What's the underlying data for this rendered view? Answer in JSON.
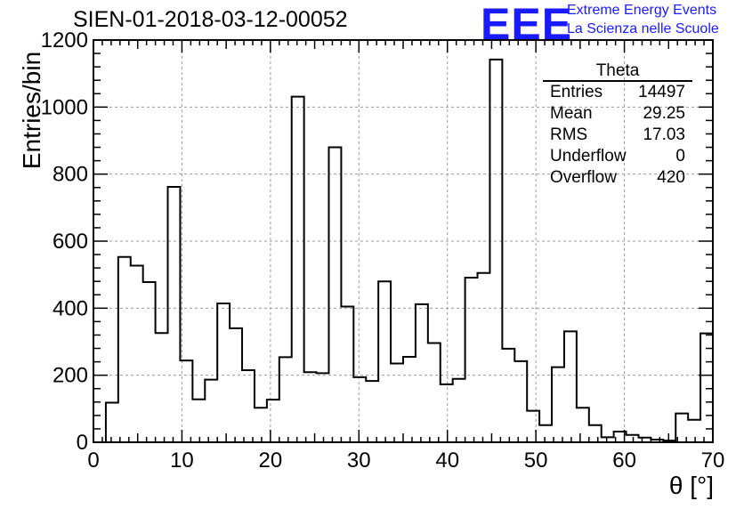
{
  "header": {
    "title": "SIEN-01-2018-03-12-00052",
    "logo_text": "EEE",
    "logo_line1": "Extreme Energy Events",
    "logo_line2": "La Scienza nelle Scuole"
  },
  "stats_box": {
    "title": "Theta",
    "rows": [
      {
        "label": "Entries",
        "value": "14497"
      },
      {
        "label": "Mean",
        "value": "29.25"
      },
      {
        "label": "RMS",
        "value": "17.03"
      },
      {
        "label": "Underflow",
        "value": "0"
      },
      {
        "label": "Overflow",
        "value": "420"
      }
    ]
  },
  "chart_data": {
    "type": "bar",
    "xlabel": "θ [°]",
    "ylabel": "Entries/bin",
    "xlim": [
      0,
      70
    ],
    "ylim": [
      0,
      1200
    ],
    "bin_width": 1.4,
    "grid": true,
    "x_ticks": [
      0,
      10,
      20,
      30,
      40,
      50,
      60,
      70
    ],
    "y_ticks": [
      0,
      200,
      400,
      600,
      800,
      1000,
      1200
    ],
    "values": [
      0,
      118,
      553,
      527,
      478,
      326,
      762,
      244,
      128,
      187,
      414,
      340,
      215,
      103,
      127,
      254,
      1031,
      209,
      206,
      880,
      405,
      194,
      183,
      480,
      235,
      255,
      412,
      296,
      173,
      189,
      491,
      505,
      1142,
      279,
      242,
      94,
      51,
      224,
      331,
      103,
      51,
      15,
      32,
      22,
      14,
      8,
      5,
      86,
      67,
      325
    ]
  }
}
